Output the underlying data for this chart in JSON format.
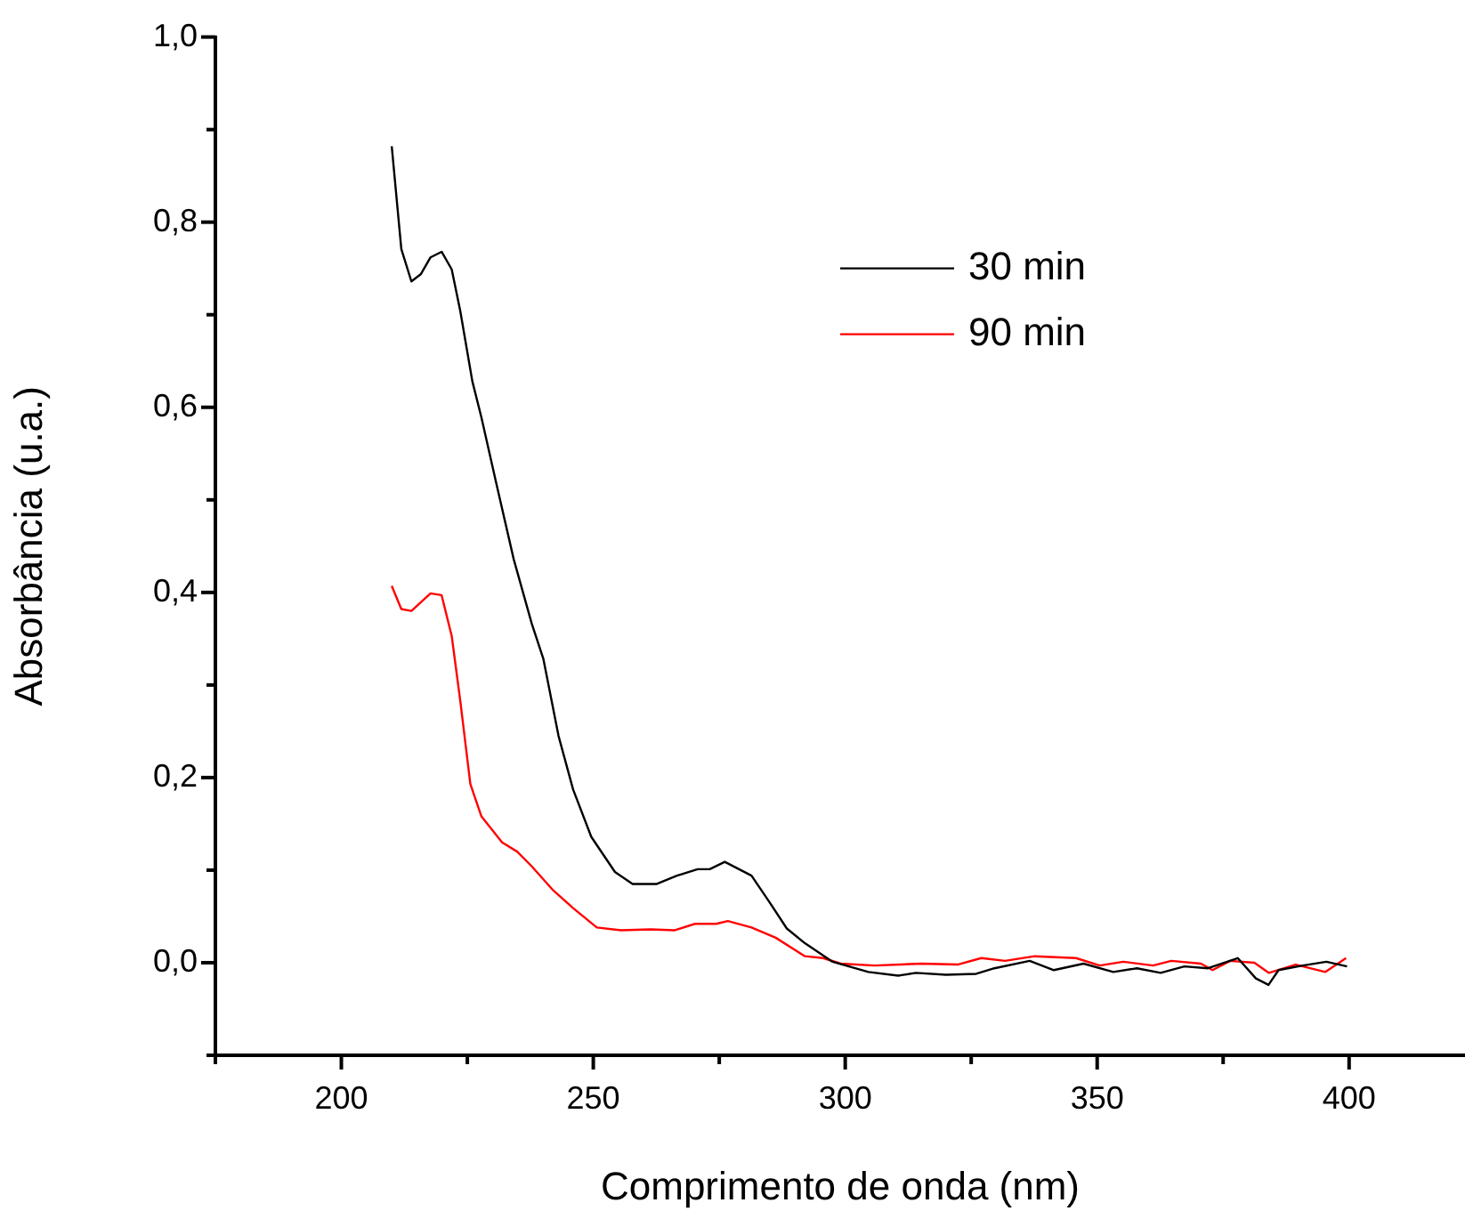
{
  "chart_data": {
    "type": "line",
    "xlabel": "Comprimento de onda (nm)",
    "ylabel": "Absorbância (u.a.)",
    "xlim": [
      175,
      423
    ],
    "ylim": [
      -0.1,
      1.0
    ],
    "xticks": [
      {
        "value": 175,
        "label": null
      },
      200,
      {
        "value": 225,
        "label": null
      },
      250,
      {
        "value": 275,
        "label": null
      },
      300,
      {
        "value": 325,
        "label": null
      },
      350,
      {
        "value": 375,
        "label": null
      },
      400
    ],
    "yticks": [
      {
        "value": -0.1,
        "label": null
      },
      {
        "value": 0,
        "label": "0,0"
      },
      {
        "value": 0.1,
        "label": null
      },
      {
        "value": 0.2,
        "label": "0,2"
      },
      {
        "value": 0.3,
        "label": null
      },
      {
        "value": 0.4,
        "label": "0,4"
      },
      {
        "value": 0.5,
        "label": null
      },
      {
        "value": 0.6,
        "label": "0,6"
      },
      {
        "value": 0.7,
        "label": null
      },
      {
        "value": 0.8,
        "label": "0,8"
      },
      {
        "value": 0.9,
        "label": null
      },
      {
        "value": 1.0,
        "label": "1,0"
      }
    ],
    "grid": false,
    "legend": "top right",
    "marker": "none",
    "line_style": "solid",
    "series": [
      {
        "name": "30 min",
        "color": "#000000",
        "x": [
          210,
          211.9,
          213.9,
          215.8,
          217.7,
          219.9,
          221.9,
          223.6,
          226,
          227.8,
          230.7,
          234.2,
          237.8,
          240.1,
          243.1,
          246,
          249.6,
          254.3,
          257.8,
          262.5,
          266.6,
          270.7,
          273.1,
          276.1,
          281.4,
          284.9,
          288.4,
          292,
          297.5,
          304.6,
          310.5,
          314,
          320,
          326,
          329.6,
          336.6,
          341.4,
          347.3,
          353.2,
          357.9,
          362.6,
          367.3,
          372,
          377.9,
          381.5,
          384,
          386,
          390.8,
          395.5,
          399.6
        ],
        "values": [
          0.882,
          0.771,
          0.736,
          0.744,
          0.762,
          0.768,
          0.749,
          0.704,
          0.628,
          0.589,
          0.519,
          0.436,
          0.366,
          0.328,
          0.245,
          0.187,
          0.136,
          0.098,
          0.085,
          0.085,
          0.094,
          0.101,
          0.101,
          0.109,
          0.094,
          0.066,
          0.037,
          0.021,
          0.001,
          -0.01,
          -0.014,
          -0.011,
          -0.013,
          -0.012,
          -0.006,
          0.002,
          -0.008,
          -0.001,
          -0.01,
          -0.006,
          -0.011,
          -0.004,
          -0.006,
          0.005,
          -0.017,
          -0.024,
          -0.008,
          -0.003,
          0.001,
          -0.004
        ]
      },
      {
        "name": "90 min",
        "color": "#ff0000",
        "x": [
          210,
          211.9,
          213.9,
          217.7,
          219.9,
          221.9,
          223.6,
          225.6,
          227.8,
          231.9,
          234.9,
          237.8,
          241.9,
          246,
          250.7,
          255.5,
          261.4,
          266.1,
          270.2,
          274.4,
          276.7,
          281.4,
          286.2,
          292,
          295.6,
          299.1,
          305.8,
          315.2,
          322.3,
          327,
          331.7,
          337.6,
          345.8,
          350.5,
          355.2,
          361.1,
          364.7,
          370.6,
          372.9,
          376.4,
          381.2,
          384.1,
          389.4,
          395.3,
          399.4
        ],
        "values": [
          0.407,
          0.382,
          0.38,
          0.399,
          0.397,
          0.353,
          0.283,
          0.193,
          0.158,
          0.13,
          0.12,
          0.104,
          0.079,
          0.059,
          0.038,
          0.035,
          0.036,
          0.035,
          0.042,
          0.042,
          0.045,
          0.038,
          0.027,
          0.007,
          0.005,
          -0.001,
          -0.003,
          -0.001,
          -0.002,
          0.005,
          0.002,
          0.007,
          0.005,
          -0.003,
          0.001,
          -0.003,
          0.002,
          -0.001,
          -0.008,
          0.002,
          0.0,
          -0.011,
          -0.002,
          -0.01,
          0.005
        ]
      }
    ]
  }
}
